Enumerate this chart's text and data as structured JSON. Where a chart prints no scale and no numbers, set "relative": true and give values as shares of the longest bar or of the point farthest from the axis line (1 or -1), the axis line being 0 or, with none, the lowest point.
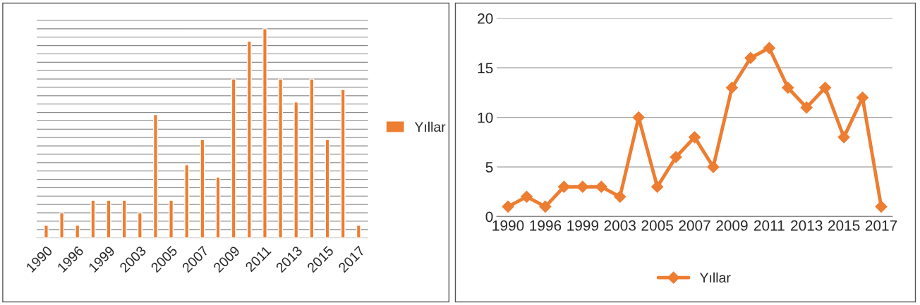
{
  "chart_data": [
    {
      "type": "bar",
      "relative": true,
      "categories": [
        "1990",
        null,
        "1996",
        null,
        "1999",
        null,
        "2003",
        null,
        "2005",
        null,
        "2007",
        null,
        "2009",
        null,
        "2011",
        null,
        "2013",
        null,
        "2015",
        null,
        "2017"
      ],
      "series": [
        {
          "name": "Yıllar",
          "color": "#ed7d31",
          "values": [
            0.06,
            0.12,
            0.06,
            0.18,
            0.18,
            0.18,
            0.12,
            0.59,
            0.18,
            0.35,
            0.47,
            0.29,
            0.76,
            0.94,
            1,
            0.76,
            0.65,
            0.76,
            0.47,
            0.71,
            0.06
          ]
        }
      ],
      "grid": "y",
      "legend": "right"
    },
    {
      "type": "line",
      "categories": [
        "1990",
        null,
        "1996",
        null,
        "1999",
        null,
        "2003",
        null,
        "2005",
        null,
        "2007",
        null,
        "2009",
        null,
        "2011",
        null,
        "2013",
        null,
        "2015",
        null,
        "2017"
      ],
      "series": [
        {
          "name": "Yıllar",
          "color": "#ed7d31",
          "values": [
            1,
            2,
            1,
            3,
            3,
            3,
            2,
            10,
            3,
            6,
            8,
            5,
            13,
            16,
            17,
            13,
            11,
            13,
            8,
            12,
            1
          ]
        }
      ],
      "ylim": [
        0,
        20
      ],
      "yticks": [
        0,
        5,
        10,
        15,
        20
      ],
      "grid": "y",
      "legend": "bottom",
      "marker": "diamond",
      "line_style": "solid"
    }
  ]
}
